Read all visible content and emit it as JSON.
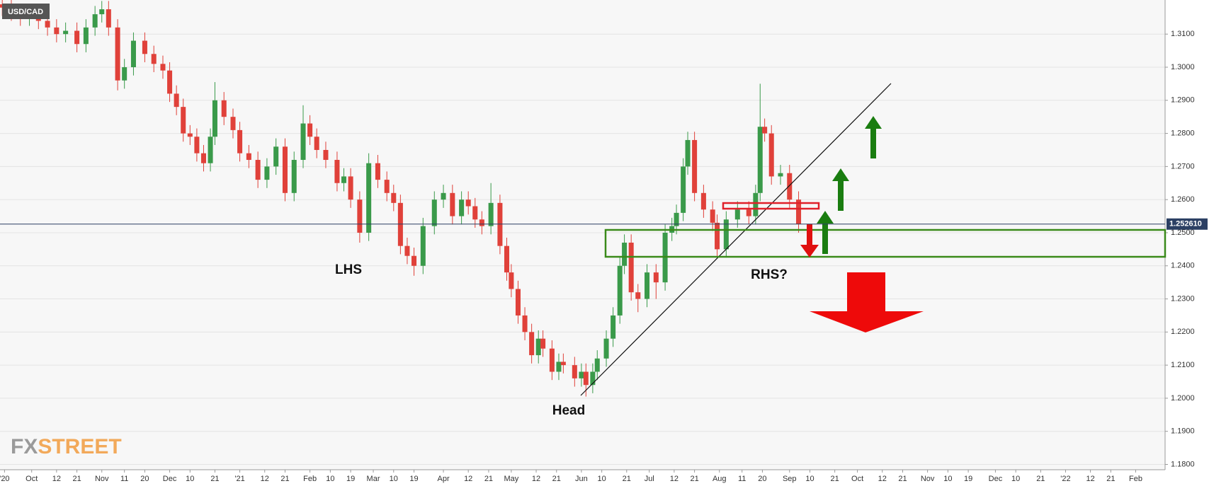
{
  "chart_data": {
    "type": "candlestick",
    "symbol": "USD/CAD",
    "logo": [
      "FX",
      "STREET"
    ],
    "annotations": [
      "LHS",
      "Head",
      "RHS?"
    ],
    "last_price": {
      "value": 1.25261,
      "label": "1.252610"
    },
    "up_color": "#3a9a4a",
    "down_color": "#e0413a",
    "grid": true,
    "xlim": [
      -14,
      501
    ],
    "ylim": [
      1.1784,
      1.3203
    ],
    "xticks": [
      {
        "value": -12,
        "label": "'20"
      },
      {
        "value": 0,
        "label": "Oct"
      },
      {
        "value": 11,
        "label": "12"
      },
      {
        "value": 20,
        "label": "21"
      },
      {
        "value": 31,
        "label": "Nov"
      },
      {
        "value": 41,
        "label": "11"
      },
      {
        "value": 50,
        "label": "20"
      },
      {
        "value": 61,
        "label": "Dec"
      },
      {
        "value": 70,
        "label": "10"
      },
      {
        "value": 81,
        "label": "21"
      },
      {
        "value": 92,
        "label": "'21"
      },
      {
        "value": 103,
        "label": "12"
      },
      {
        "value": 112,
        "label": "21"
      },
      {
        "value": 123,
        "label": "Feb"
      },
      {
        "value": 132,
        "label": "10"
      },
      {
        "value": 141,
        "label": "19"
      },
      {
        "value": 151,
        "label": "Mar"
      },
      {
        "value": 160,
        "label": "10"
      },
      {
        "value": 169,
        "label": "19"
      },
      {
        "value": 182,
        "label": "Apr"
      },
      {
        "value": 193,
        "label": "12"
      },
      {
        "value": 202,
        "label": "21"
      },
      {
        "value": 212,
        "label": "May"
      },
      {
        "value": 223,
        "label": "12"
      },
      {
        "value": 232,
        "label": "21"
      },
      {
        "value": 243,
        "label": "Jun"
      },
      {
        "value": 252,
        "label": "10"
      },
      {
        "value": 263,
        "label": "21"
      },
      {
        "value": 273,
        "label": "Jul"
      },
      {
        "value": 284,
        "label": "12"
      },
      {
        "value": 293,
        "label": "21"
      },
      {
        "value": 304,
        "label": "Aug"
      },
      {
        "value": 314,
        "label": "11"
      },
      {
        "value": 323,
        "label": "20"
      },
      {
        "value": 335,
        "label": "Sep"
      },
      {
        "value": 344,
        "label": "10"
      },
      {
        "value": 355,
        "label": "21"
      },
      {
        "value": 365,
        "label": "Oct"
      },
      {
        "value": 376,
        "label": "12"
      },
      {
        "value": 385,
        "label": "21"
      },
      {
        "value": 396,
        "label": "Nov"
      },
      {
        "value": 405,
        "label": "10"
      },
      {
        "value": 414,
        "label": "19"
      },
      {
        "value": 426,
        "label": "Dec"
      },
      {
        "value": 435,
        "label": "10"
      },
      {
        "value": 446,
        "label": "21"
      },
      {
        "value": 457,
        "label": "'22"
      },
      {
        "value": 468,
        "label": "12"
      },
      {
        "value": 477,
        "label": "21"
      },
      {
        "value": 488,
        "label": "Feb"
      }
    ],
    "yticks": [
      {
        "value": 1.18,
        "label": "1.1800"
      },
      {
        "value": 1.19,
        "label": "1.1900"
      },
      {
        "value": 1.2,
        "label": "1.2000"
      },
      {
        "value": 1.21,
        "label": "1.2100"
      },
      {
        "value": 1.22,
        "label": "1.2200"
      },
      {
        "value": 1.23,
        "label": "1.2300"
      },
      {
        "value": 1.24,
        "label": "1.2400"
      },
      {
        "value": 1.25,
        "label": "1.2500"
      },
      {
        "value": 1.26,
        "label": "1.2600"
      },
      {
        "value": 1.27,
        "label": "1.2700"
      },
      {
        "value": 1.28,
        "label": "1.2800"
      },
      {
        "value": 1.29,
        "label": "1.2900"
      },
      {
        "value": 1.3,
        "label": "1.3000"
      },
      {
        "value": 1.31,
        "label": "1.3100"
      }
    ],
    "x": [
      -13,
      -9,
      -5,
      -1,
      3,
      7,
      11,
      15,
      20,
      24,
      28,
      31,
      34,
      38,
      41,
      45,
      50,
      54,
      58,
      61,
      64,
      67,
      70,
      73,
      76,
      79,
      81,
      85,
      89,
      92,
      96,
      100,
      104,
      108,
      112,
      116,
      120,
      123,
      126,
      130,
      135,
      138,
      141,
      145,
      149,
      153,
      157,
      160,
      163,
      166,
      169,
      173,
      178,
      182,
      186,
      190,
      193,
      196,
      199,
      203,
      207,
      210,
      212,
      215,
      218,
      221,
      224,
      226,
      230,
      233,
      235,
      240,
      243,
      245,
      248,
      250,
      254,
      257,
      260,
      262,
      265,
      268,
      272,
      276,
      280,
      283,
      285,
      288,
      290,
      293,
      297,
      301,
      303,
      307,
      312,
      317,
      320,
      322,
      324,
      327,
      331,
      335,
      339
    ],
    "open": [
      1.319,
      1.318,
      1.3165,
      1.315,
      1.316,
      1.314,
      1.312,
      1.31,
      1.311,
      1.307,
      1.312,
      1.316,
      1.3175,
      1.312,
      1.296,
      1.3,
      1.308,
      1.304,
      1.301,
      1.299,
      1.292,
      1.288,
      1.28,
      1.279,
      1.274,
      1.271,
      1.279,
      1.29,
      1.285,
      1.281,
      1.274,
      1.272,
      1.266,
      1.27,
      1.276,
      1.262,
      1.272,
      1.283,
      1.279,
      1.275,
      1.272,
      1.265,
      1.267,
      1.26,
      1.25,
      1.271,
      1.266,
      1.262,
      1.259,
      1.246,
      1.243,
      1.24,
      1.252,
      1.26,
      1.262,
      1.255,
      1.26,
      1.258,
      1.254,
      1.252,
      1.259,
      1.246,
      1.238,
      1.233,
      1.225,
      1.22,
      1.213,
      1.218,
      1.215,
      1.208,
      1.211,
      1.21,
      1.206,
      1.208,
      1.204,
      1.208,
      1.212,
      1.218,
      1.225,
      1.24,
      1.247,
      1.232,
      1.23,
      1.238,
      1.235,
      1.25,
      1.252,
      1.256,
      1.27,
      1.278,
      1.262,
      1.257,
      1.253,
      1.245,
      1.254,
      1.257,
      1.255,
      1.262,
      1.282,
      1.28,
      1.267,
      1.268,
      1.26
    ],
    "high": [
      1.3215,
      1.3205,
      1.319,
      1.3185,
      1.3185,
      1.3165,
      1.3145,
      1.3135,
      1.3135,
      1.3145,
      1.3185,
      1.32,
      1.32,
      1.3145,
      1.3025,
      1.3105,
      1.3105,
      1.3065,
      1.3035,
      1.3015,
      1.2945,
      1.2905,
      1.2825,
      1.2815,
      1.2765,
      1.2815,
      1.2955,
      1.2925,
      1.2875,
      1.2835,
      1.2765,
      1.2745,
      1.2725,
      1.2785,
      1.2785,
      1.2745,
      1.2885,
      1.2855,
      1.2815,
      1.2775,
      1.2745,
      1.2695,
      1.2695,
      1.2625,
      1.274,
      1.2735,
      1.2685,
      1.2645,
      1.2615,
      1.2485,
      1.2455,
      1.2545,
      1.2625,
      1.2645,
      1.2645,
      1.2625,
      1.2625,
      1.2605,
      1.2565,
      1.265,
      1.2615,
      1.2485,
      1.2405,
      1.2355,
      1.2275,
      1.2225,
      1.2205,
      1.2205,
      1.2175,
      1.2135,
      1.2135,
      1.2125,
      1.2105,
      1.2105,
      1.2105,
      1.2145,
      1.2205,
      1.2275,
      1.2425,
      1.2495,
      1.2495,
      1.2345,
      1.2405,
      1.2405,
      1.2525,
      1.2545,
      1.2585,
      1.2725,
      1.2805,
      1.2805,
      1.2645,
      1.2595,
      1.2555,
      1.2565,
      1.2595,
      1.2595,
      1.2645,
      1.295,
      1.2845,
      1.2825,
      1.2705,
      1.2705,
      1.2625
    ],
    "low": [
      1.3155,
      1.314,
      1.3125,
      1.3125,
      1.3115,
      1.3095,
      1.3075,
      1.3075,
      1.3045,
      1.3045,
      1.3095,
      1.3135,
      1.3095,
      1.293,
      1.2935,
      1.2975,
      1.3015,
      1.2985,
      1.2965,
      1.2895,
      1.2855,
      1.2775,
      1.2765,
      1.2715,
      1.2685,
      1.2685,
      1.2765,
      1.2825,
      1.2785,
      1.2715,
      1.2695,
      1.2635,
      1.2635,
      1.2675,
      1.2595,
      1.2595,
      1.2695,
      1.2765,
      1.2725,
      1.2695,
      1.2625,
      1.2625,
      1.2575,
      1.247,
      1.2475,
      1.2635,
      1.2595,
      1.2565,
      1.2435,
      1.2405,
      1.237,
      1.2375,
      1.2495,
      1.2575,
      1.2525,
      1.2525,
      1.2555,
      1.2515,
      1.2495,
      1.2495,
      1.2435,
      1.2355,
      1.2305,
      1.2225,
      1.2175,
      1.2105,
      1.2105,
      1.2125,
      1.2055,
      1.2055,
      1.2075,
      1.2035,
      1.2035,
      1.2005,
      1.2015,
      1.2055,
      1.2095,
      1.2155,
      1.2225,
      1.2375,
      1.2295,
      1.226,
      1.2275,
      1.23,
      1.2325,
      1.2475,
      1.2495,
      1.2535,
      1.2675,
      1.2595,
      1.2545,
      1.2505,
      1.2425,
      1.2425,
      1.2515,
      1.2525,
      1.2525,
      1.2595,
      1.2775,
      1.2645,
      1.2645,
      1.2575,
      1.25
    ],
    "close": [
      1.318,
      1.3165,
      1.315,
      1.316,
      1.314,
      1.312,
      1.31,
      1.311,
      1.307,
      1.312,
      1.316,
      1.3175,
      1.312,
      1.296,
      1.3,
      1.308,
      1.304,
      1.301,
      1.299,
      1.292,
      1.288,
      1.28,
      1.279,
      1.274,
      1.271,
      1.279,
      1.29,
      1.285,
      1.281,
      1.274,
      1.272,
      1.266,
      1.27,
      1.276,
      1.262,
      1.272,
      1.283,
      1.279,
      1.275,
      1.272,
      1.265,
      1.267,
      1.26,
      1.25,
      1.271,
      1.266,
      1.262,
      1.259,
      1.246,
      1.243,
      1.24,
      1.252,
      1.26,
      1.262,
      1.255,
      1.26,
      1.258,
      1.254,
      1.252,
      1.259,
      1.246,
      1.238,
      1.233,
      1.225,
      1.22,
      1.213,
      1.218,
      1.215,
      1.208,
      1.211,
      1.21,
      1.206,
      1.208,
      1.204,
      1.208,
      1.212,
      1.218,
      1.225,
      1.24,
      1.247,
      1.232,
      1.23,
      1.238,
      1.235,
      1.25,
      1.252,
      1.256,
      1.27,
      1.278,
      1.262,
      1.257,
      1.253,
      1.245,
      1.254,
      1.257,
      1.255,
      1.262,
      1.282,
      1.28,
      1.267,
      1.268,
      1.26,
      1.2526
    ]
  }
}
